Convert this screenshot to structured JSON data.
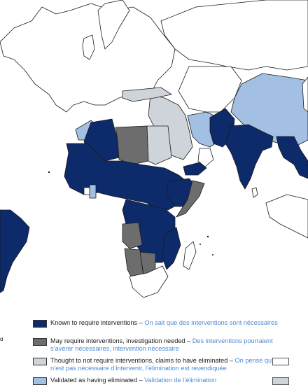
{
  "colors": {
    "known": "#0d2a6b",
    "may": "#6d6d6d",
    "thought": "#cfd3da",
    "validated": "#a3bfe3",
    "no_data": "#ffffff",
    "border": "#1b1b1b",
    "french_text": "#4a8ad4"
  },
  "legend": [
    {
      "category": "known",
      "label_en": "Known to require interventions",
      "separator": " – ",
      "label_fr": "On sait que des interventions sont nécessaires"
    },
    {
      "category": "may",
      "label_en": "May require interventions, investigation needed",
      "separator": " – ",
      "label_fr": "Des interventions pourraient s’avérer nécessaires, intervention nécessaire"
    },
    {
      "category": "thought",
      "label_en": "Thought to not require interventions, claims to have eliminated",
      "separator": " – ",
      "label_fr": "On pense qu’il n’est pas nécessaire d’intervenir, l’élimination est revendiquée"
    },
    {
      "category": "validated",
      "label_en": "Validated as having eliminated",
      "separator": " – ",
      "label_fr": "Validation de l’élimination"
    }
  ],
  "edge_glyph": "ɑ"
}
